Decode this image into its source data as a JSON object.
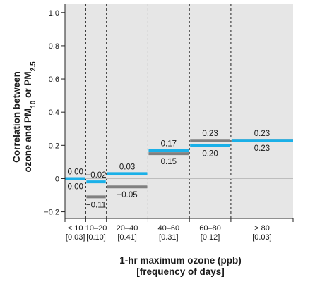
{
  "chart_data": {
    "type": "bar",
    "title": "",
    "xlabel": [
      "1-hr maximum ozone (ppb)",
      "[frequency of days]"
    ],
    "ylabel": {
      "line1": "Correlation between",
      "line2": {
        "prefix": "ozone and PM",
        "sub1": "10",
        "middle": " or PM",
        "sub2": "2.5"
      }
    },
    "ylim": [
      -0.24,
      1.05
    ],
    "yticks": [
      {
        "value": -0.2,
        "label": "−0.2"
      },
      {
        "value": 0,
        "label": "0"
      },
      {
        "value": 0.2,
        "label": "0.2"
      },
      {
        "value": 0.4,
        "label": "0.4"
      },
      {
        "value": 0.6,
        "label": "0.6"
      },
      {
        "value": 0.8,
        "label": "0.8"
      },
      {
        "value": 1.0,
        "label": "1.0"
      }
    ],
    "grid": false,
    "categories": [
      {
        "range": "< 10",
        "frequency": "[0.03]",
        "x0": 0,
        "x1": 10
      },
      {
        "range": "10–20",
        "frequency": "[0.10]",
        "x0": 10,
        "x1": 20
      },
      {
        "range": "20–40",
        "frequency": "[0.41]",
        "x0": 20,
        "x1": 40
      },
      {
        "range": "40–60",
        "frequency": "[0.31]",
        "x0": 40,
        "x1": 60
      },
      {
        "range": "60–80",
        "frequency": "[0.12]",
        "x0": 60,
        "x1": 80
      },
      {
        "range": "> 80",
        "frequency": "[0.03]",
        "x0": 80,
        "x1": 110
      }
    ],
    "series": [
      {
        "color": "#808080",
        "values": [
          0.0,
          -0.11,
          -0.05,
          0.15,
          0.23,
          0.23
        ],
        "labels": [
          "0.00",
          "−0.11",
          "−0.05",
          "0.15",
          "0.23",
          "0.23"
        ]
      },
      {
        "color": "#1ab0e8",
        "values": [
          0.0,
          -0.02,
          0.03,
          0.17,
          0.2,
          0.23
        ],
        "labels": [
          "0.00",
          "−0.02",
          "0.03",
          "0.17",
          "0.20",
          "0.23"
        ]
      }
    ],
    "plot_background": "#e6e6e6"
  }
}
